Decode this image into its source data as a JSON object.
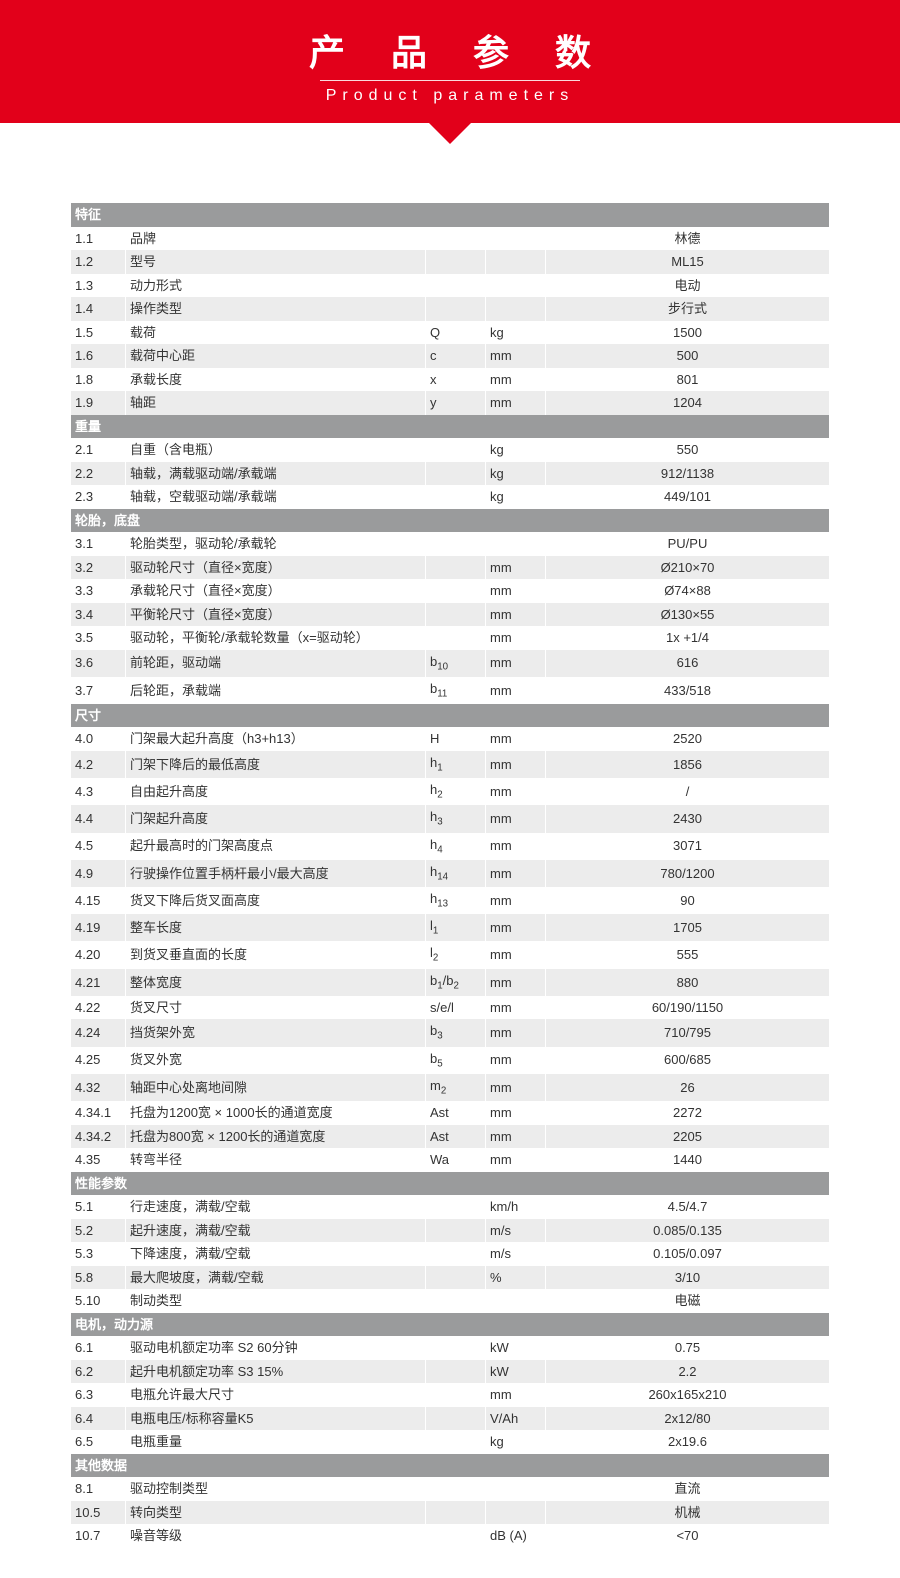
{
  "banner": {
    "title_cn": "产 品 参 数",
    "title_en": "Product parameters"
  },
  "colors": {
    "brand_red": "#e2001a",
    "section_bg": "#9a9b9c",
    "row_even": "#ececec",
    "row_odd": "#ffffff"
  },
  "sections": [
    {
      "header": "特征",
      "rows": [
        {
          "idx": "1.1",
          "desc": "品牌",
          "sym": "",
          "unit": "",
          "val": "林德"
        },
        {
          "idx": "1.2",
          "desc": "型号",
          "sym": "",
          "unit": "",
          "val": "ML15"
        },
        {
          "idx": "1.3",
          "desc": "动力形式",
          "sym": "",
          "unit": "",
          "val": "电动"
        },
        {
          "idx": "1.4",
          "desc": "操作类型",
          "sym": "",
          "unit": "",
          "val": "步行式"
        },
        {
          "idx": "1.5",
          "desc": "载荷",
          "sym": "Q",
          "unit": "kg",
          "val": "1500"
        },
        {
          "idx": "1.6",
          "desc": "载荷中心距",
          "sym": "c",
          "unit": "mm",
          "val": "500"
        },
        {
          "idx": "1.8",
          "desc": "承载长度",
          "sym": "x",
          "unit": "mm",
          "val": "801"
        },
        {
          "idx": "1.9",
          "desc": "轴距",
          "sym": "y",
          "unit": "mm",
          "val": "1204"
        }
      ]
    },
    {
      "header": "重量",
      "rows": [
        {
          "idx": "2.1",
          "desc": "自重（含电瓶）",
          "sym": "",
          "unit": "kg",
          "val": "550"
        },
        {
          "idx": "2.2",
          "desc": "轴载，满载驱动端/承载端",
          "sym": "",
          "unit": "kg",
          "val": "912/1138"
        },
        {
          "idx": "2.3",
          "desc": "轴载，空载驱动端/承载端",
          "sym": "",
          "unit": "kg",
          "val": "449/101"
        }
      ]
    },
    {
      "header": "轮胎，底盘",
      "rows": [
        {
          "idx": "3.1",
          "desc": "轮胎类型，驱动轮/承载轮",
          "sym": "",
          "unit": "",
          "val": "PU/PU"
        },
        {
          "idx": "3.2",
          "desc": "驱动轮尺寸（直径×宽度）",
          "sym": "",
          "unit": "mm",
          "val": "Ø210×70"
        },
        {
          "idx": "3.3",
          "desc": "承载轮尺寸（直径×宽度）",
          "sym": "",
          "unit": "mm",
          "val": "Ø74×88"
        },
        {
          "idx": "3.4",
          "desc": "平衡轮尺寸（直径×宽度）",
          "sym": "",
          "unit": "mm",
          "val": "Ø130×55"
        },
        {
          "idx": "3.5",
          "desc": "驱动轮，平衡轮/承载轮数量（x=驱动轮）",
          "sym": "",
          "unit": "mm",
          "val": "1x +1/4"
        },
        {
          "idx": "3.6",
          "desc": "前轮距，驱动端",
          "sym_html": "b<sub>10</sub>",
          "unit": "mm",
          "val": "616"
        },
        {
          "idx": "3.7",
          "desc": "后轮距，承载端",
          "sym_html": "b<sub>11</sub>",
          "unit": "mm",
          "val": "433/518"
        }
      ]
    },
    {
      "header": "尺寸",
      "rows": [
        {
          "idx": "4.0",
          "desc": "门架最大起升高度（h3+h13）",
          "sym": "H",
          "unit": "mm",
          "val": "2520"
        },
        {
          "idx": "4.2",
          "desc": "门架下降后的最低高度",
          "sym_html": "h<sub>1</sub>",
          "unit": "mm",
          "val": "1856"
        },
        {
          "idx": "4.3",
          "desc": "自由起升高度",
          "sym_html": "h<sub>2</sub>",
          "unit": "mm",
          "val": "/"
        },
        {
          "idx": "4.4",
          "desc": "门架起升高度",
          "sym_html": "h<sub>3</sub>",
          "unit": "mm",
          "val": "2430"
        },
        {
          "idx": "4.5",
          "desc": "起升最高时的门架高度点",
          "sym_html": "h<sub>4</sub>",
          "unit": "mm",
          "val": "3071"
        },
        {
          "idx": "4.9",
          "desc": "行驶操作位置手柄杆最小/最大高度",
          "sym_html": "h<sub>14</sub>",
          "unit": "mm",
          "val": "780/1200"
        },
        {
          "idx": "4.15",
          "desc": "货叉下降后货叉面高度",
          "sym_html": "h<sub>13</sub>",
          "unit": "mm",
          "val": "90"
        },
        {
          "idx": "4.19",
          "desc": "整车长度",
          "sym_html": "l<sub>1</sub>",
          "unit": "mm",
          "val": "1705"
        },
        {
          "idx": "4.20",
          "desc": "到货叉垂直面的长度",
          "sym_html": "l<sub>2</sub>",
          "unit": "mm",
          "val": "555"
        },
        {
          "idx": "4.21",
          "desc": "整体宽度",
          "sym_html": "b<sub>1</sub>/b<sub>2</sub>",
          "unit": "mm",
          "val": "880"
        },
        {
          "idx": "4.22",
          "desc": "货叉尺寸",
          "sym": "s/e/l",
          "unit": "mm",
          "val": "60/190/1150"
        },
        {
          "idx": "4.24",
          "desc": "挡货架外宽",
          "sym_html": "b<sub>3</sub>",
          "unit": "mm",
          "val": "710/795"
        },
        {
          "idx": "4.25",
          "desc": "货叉外宽",
          "sym_html": "b<sub>5</sub>",
          "unit": "mm",
          "val": "600/685"
        },
        {
          "idx": "4.32",
          "desc": "轴距中心处离地间隙",
          "sym_html": "m<sub>2</sub>",
          "unit": "mm",
          "val": "26"
        },
        {
          "idx": "4.34.1",
          "desc": "托盘为1200宽 × 1000长的通道宽度",
          "sym": "Ast",
          "unit": "mm",
          "val": "2272"
        },
        {
          "idx": "4.34.2",
          "desc": "托盘为800宽 × 1200长的通道宽度",
          "sym": "Ast",
          "unit": "mm",
          "val": "2205"
        },
        {
          "idx": "4.35",
          "desc": "转弯半径",
          "sym": "Wa",
          "unit": "mm",
          "val": "1440"
        }
      ]
    },
    {
      "header": "性能参数",
      "rows": [
        {
          "idx": "5.1",
          "desc": "行走速度，满载/空载",
          "sym": "",
          "unit": "km/h",
          "val": "4.5/4.7"
        },
        {
          "idx": "5.2",
          "desc": "起升速度，满载/空载",
          "sym": "",
          "unit": "m/s",
          "val": "0.085/0.135"
        },
        {
          "idx": "5.3",
          "desc": "下降速度，满载/空载",
          "sym": "",
          "unit": "m/s",
          "val": "0.105/0.097"
        },
        {
          "idx": "5.8",
          "desc": "最大爬坡度，满载/空载",
          "sym": "",
          "unit": "%",
          "val": "3/10"
        },
        {
          "idx": "5.10",
          "desc": "制动类型",
          "sym": "",
          "unit": "",
          "val": "电磁"
        }
      ]
    },
    {
      "header": "电机，动力源",
      "rows": [
        {
          "idx": "6.1",
          "desc": "驱动电机额定功率 S2 60分钟",
          "sym": "",
          "unit": "kW",
          "val": "0.75"
        },
        {
          "idx": "6.2",
          "desc": "起升电机额定功率 S3 15%",
          "sym": "",
          "unit": "kW",
          "val": "2.2"
        },
        {
          "idx": "6.3",
          "desc": "电瓶允许最大尺寸",
          "sym": "",
          "unit": "mm",
          "val": "260x165x210"
        },
        {
          "idx": "6.4",
          "desc": "电瓶电压/标称容量K5",
          "sym": "",
          "unit": "V/Ah",
          "val": "2x12/80"
        },
        {
          "idx": "6.5",
          "desc": "电瓶重量",
          "sym": "",
          "unit": "kg",
          "val": "2x19.6"
        }
      ]
    },
    {
      "header": "其他数据",
      "rows": [
        {
          "idx": "8.1",
          "desc": "驱动控制类型",
          "sym": "",
          "unit": "",
          "val": "直流"
        },
        {
          "idx": "10.5",
          "desc": "转向类型",
          "sym": "",
          "unit": "",
          "val": "机械"
        },
        {
          "idx": "10.7",
          "desc": "噪音等级",
          "sym": "",
          "unit": "dB (A)",
          "val": "<70"
        }
      ]
    }
  ]
}
